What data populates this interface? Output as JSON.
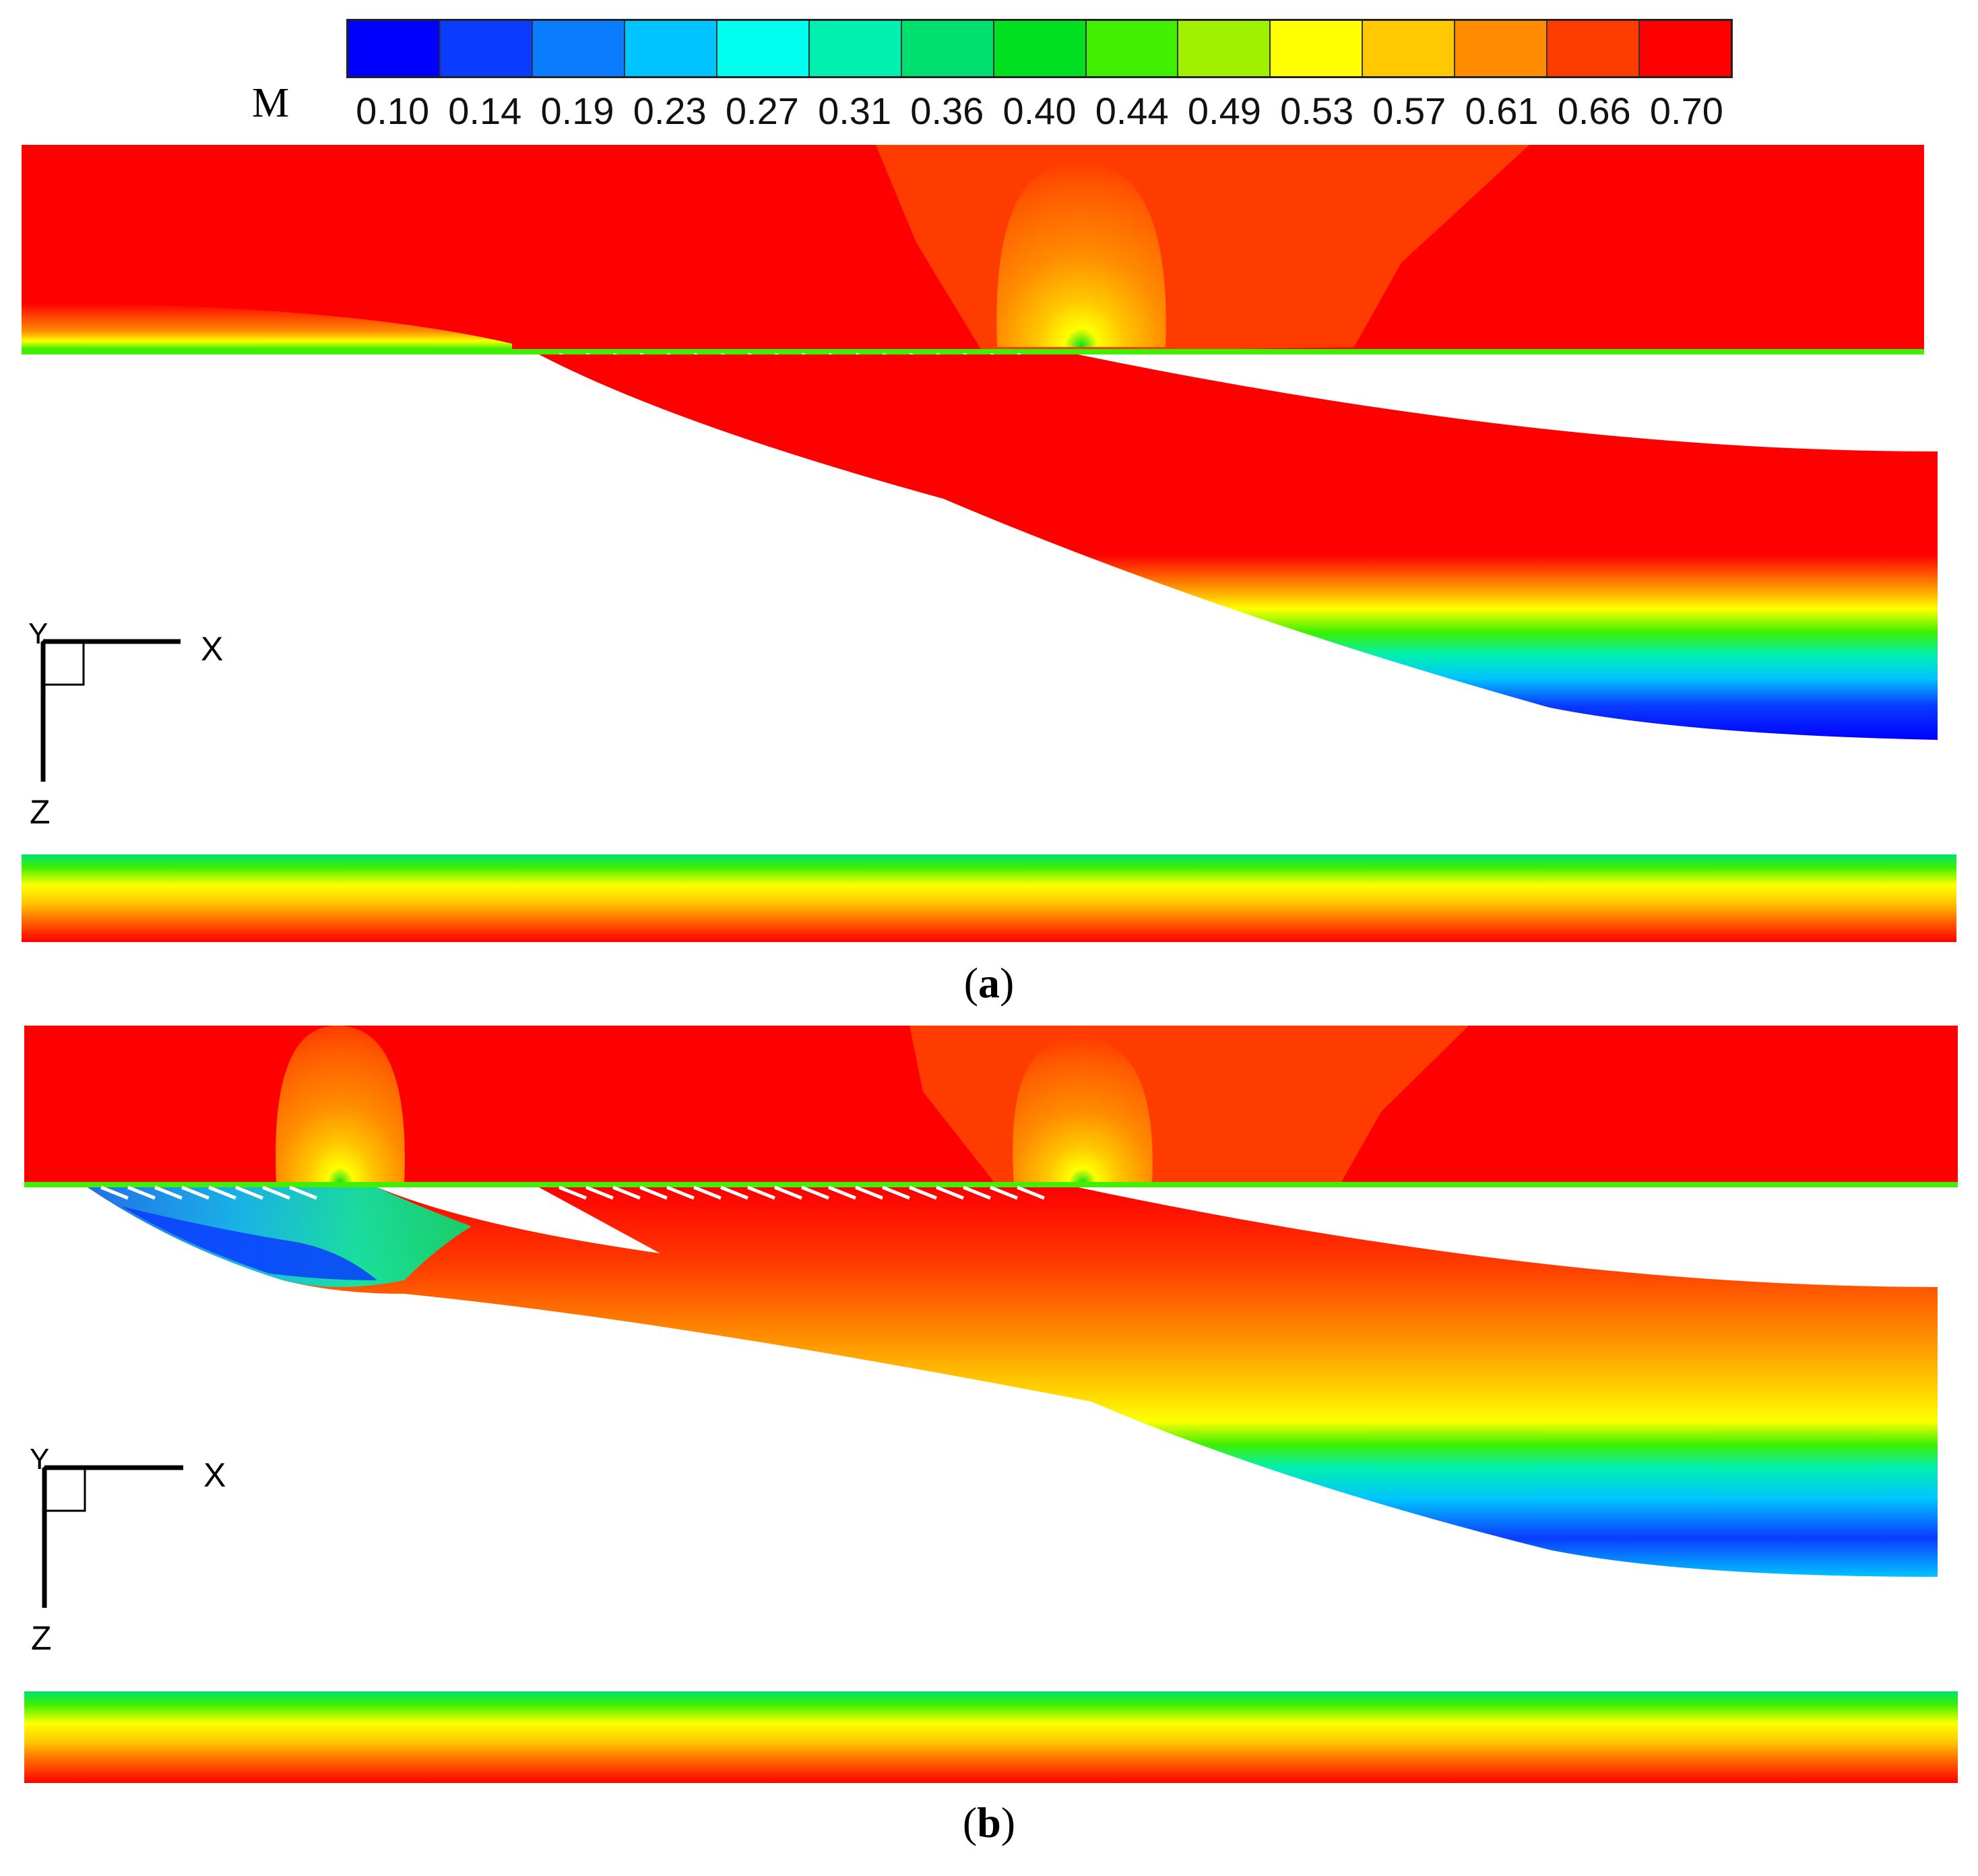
{
  "legend": {
    "variable": "M",
    "ticks": [
      "0.10",
      "0.14",
      "0.19",
      "0.23",
      "0.27",
      "0.31",
      "0.36",
      "0.40",
      "0.44",
      "0.49",
      "0.53",
      "0.57",
      "0.61",
      "0.66",
      "0.70"
    ],
    "colors": [
      "#0000ff",
      "#0a3cff",
      "#0a7cff",
      "#00c4ff",
      "#00ffee",
      "#00f0b0",
      "#00e070",
      "#00e020",
      "#40f000",
      "#a0f000",
      "#ffff00",
      "#ffc800",
      "#ff8c00",
      "#ff3c00",
      "#ff0000"
    ]
  },
  "panels": [
    {
      "caption_open": "(",
      "caption_letter": "a",
      "caption_close": ")",
      "axis_x": "X",
      "axis_y": "Y",
      "axis_z": "Z"
    },
    {
      "caption_open": "(",
      "caption_letter": "b",
      "caption_close": ")",
      "axis_x": "X",
      "axis_y": "Y",
      "axis_z": "Z"
    }
  ]
}
